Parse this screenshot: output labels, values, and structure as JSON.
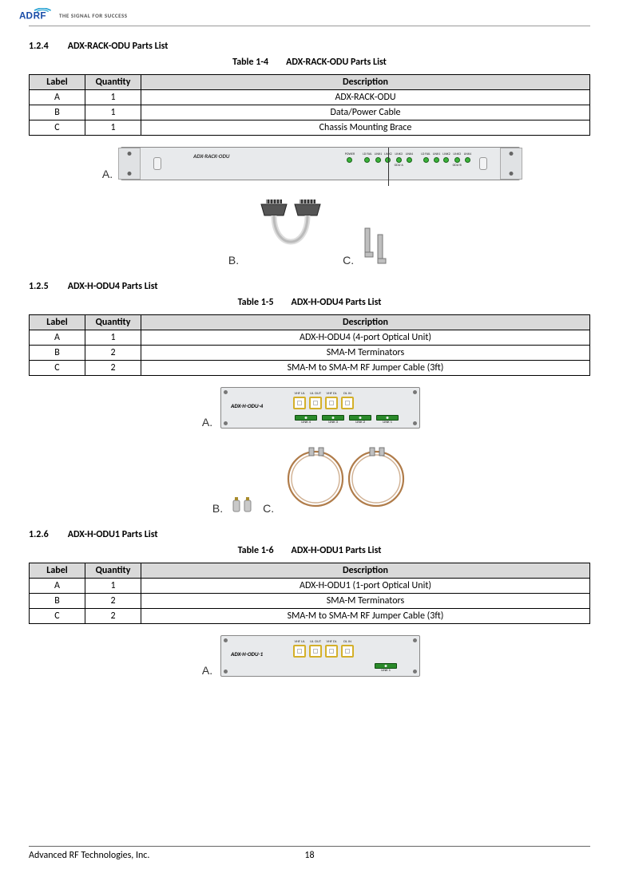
{
  "header": {
    "tagline": "THE SIGNAL FOR SUCCESS",
    "logo_colors": {
      "a": "#1a4da8",
      "d": "#1a4da8",
      "r": "#1a4da8",
      "f": "#1a4da8",
      "arc": "#21a0d2"
    }
  },
  "section_124": {
    "number": "1.2.4",
    "title": "ADX-RACK-ODU Parts List",
    "caption_num": "Table 1-4",
    "caption_title": "ADX-RACK-ODU Parts List",
    "columns": [
      "Label",
      "Quantity",
      "Description"
    ],
    "rows": [
      [
        "A",
        "1",
        "ADX-RACK-ODU"
      ],
      [
        "B",
        "1",
        "Data/Power Cable"
      ],
      [
        "C",
        "1",
        "Chassis Mounting Brace"
      ]
    ],
    "fig_labels": {
      "a": "A.",
      "b": "B.",
      "c": "C."
    },
    "rack": {
      "label": "ADX-RACK-ODU",
      "leds": [
        "POWER",
        "LD FAIL",
        "LINK1",
        "LINK2",
        "LINK3",
        "LINK4",
        "LD FAIL",
        "LINK1",
        "LINK2",
        "LINK3",
        "LINK4"
      ],
      "sublabels": {
        "4": "ODU-A",
        "9": "ODU-B"
      }
    }
  },
  "section_125": {
    "number": "1.2.5",
    "title": "ADX-H-ODU4 Parts List",
    "caption_num": "Table 1-5",
    "caption_title": "ADX-H-ODU4 Parts List",
    "columns": [
      "Label",
      "Quantity",
      "Description"
    ],
    "rows": [
      [
        "A",
        "1",
        "ADX-H-ODU4 (4-port Optical Unit)"
      ],
      [
        "B",
        "2",
        "SMA-M Terminators"
      ],
      [
        "C",
        "2",
        "SMA-M to SMA-M RF Jumper Cable (3ft)"
      ]
    ],
    "fig_labels": {
      "a": "A.",
      "b": "B.",
      "c": "C."
    },
    "odu": {
      "name": "ADX-H-ODU-4",
      "port_labels": [
        "VHF UL",
        "UL OUT",
        "VHF DL",
        "DL IN"
      ],
      "link_count": 4,
      "link_labels": [
        "LINK 4",
        "LINK 3",
        "LINK 2",
        "LINK 1"
      ]
    }
  },
  "section_126": {
    "number": "1.2.6",
    "title": "ADX-H-ODU1 Parts List",
    "caption_num": "Table 1-6",
    "caption_title": "ADX-H-ODU1 Parts List",
    "columns": [
      "Label",
      "Quantity",
      "Description"
    ],
    "rows": [
      [
        "A",
        "1",
        "ADX-H-ODU1 (1-port Optical Unit)"
      ],
      [
        "B",
        "2",
        "SMA-M Terminators"
      ],
      [
        "C",
        "2",
        "SMA-M to SMA-M RF Jumper Cable (3ft)"
      ]
    ],
    "fig_labels": {
      "a": "A."
    },
    "odu": {
      "name": "ADX-H-ODU-1",
      "port_labels": [
        "VHF UL",
        "UL OUT",
        "VHF DL",
        "DL IN"
      ],
      "link_count": 1,
      "link_labels": [
        "LINK 1"
      ]
    }
  },
  "footer": {
    "company": "Advanced RF Technologies, Inc.",
    "page": "18"
  },
  "colors": {
    "table_header_bg": "#d9d9d9",
    "led_green": "#3bb33b",
    "port_border": "#d4b02a",
    "link_green": "#2a8a2a",
    "panel_bg": "#e8eaec",
    "cable_loop": "#b07c4a"
  }
}
